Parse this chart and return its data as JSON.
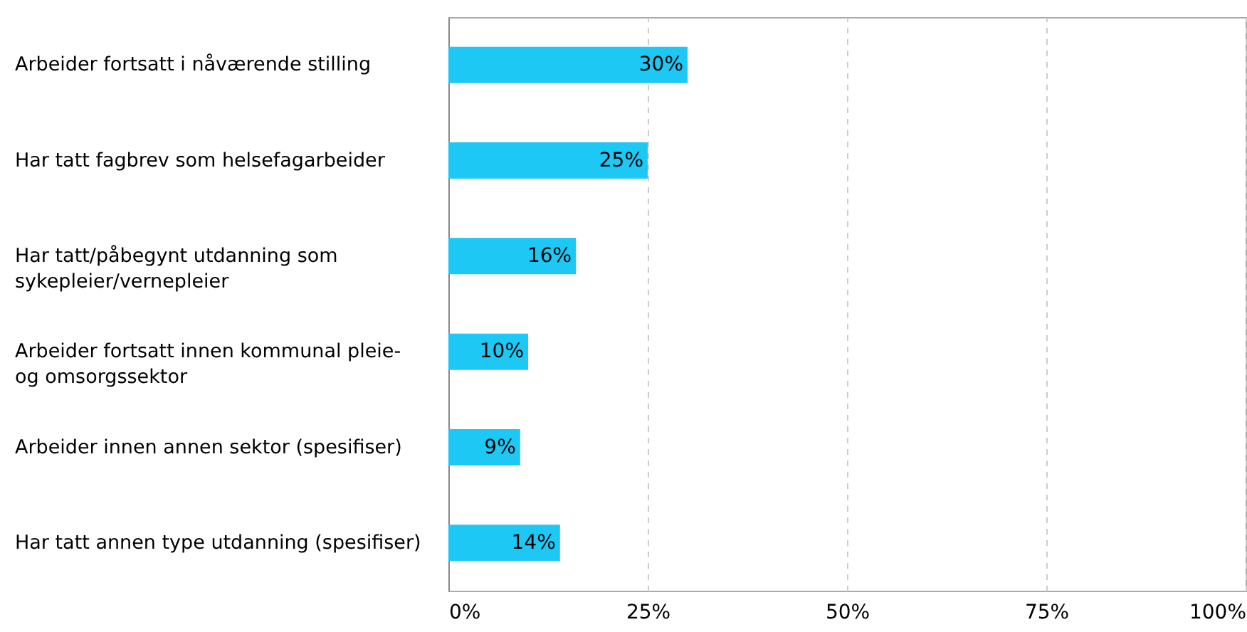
{
  "chart_data": {
    "type": "bar",
    "orientation": "horizontal",
    "categories": [
      "Arbeider fortsatt i nåværende stilling",
      "Har tatt fagbrev som helsefagarbeider",
      "Har tatt/påbegynt utdanning som\nsykepleier/vernepleier",
      "Arbeider fortsatt innen kommunal pleie-\nog omsorgssektor",
      "Arbeider innen annen sektor (spesifiser)",
      "Har tatt annen type utdanning (spesifiser)"
    ],
    "values": [
      30,
      25,
      16,
      10,
      9,
      14
    ],
    "value_labels": [
      "30%",
      "25%",
      "16%",
      "10%",
      "9%",
      "14%"
    ],
    "color": "#1ec8f5",
    "xlim": [
      0,
      100
    ],
    "xticks": [
      {
        "value": 0,
        "label": "0%"
      },
      {
        "value": 25,
        "label": "25%"
      },
      {
        "value": 50,
        "label": "50%"
      },
      {
        "value": 75,
        "label": "75%"
      },
      {
        "value": 100,
        "label": "100%"
      }
    ],
    "grid": "x"
  }
}
